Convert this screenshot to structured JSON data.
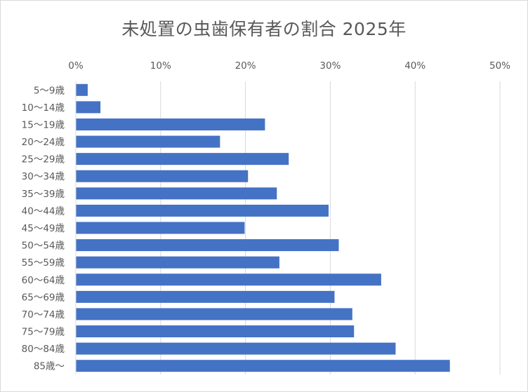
{
  "chart_data": {
    "type": "bar",
    "orientation": "horizontal",
    "title": "未処置の虫歯保有者の割合 2025年",
    "categories": [
      "5〜9歳",
      "10〜14歳",
      "15〜19歳",
      "20〜24歳",
      "25〜29歳",
      "30〜34歳",
      "35〜39歳",
      "40〜44歳",
      "45〜49歳",
      "50〜54歳",
      "55〜59歳",
      "60〜64歳",
      "65〜69歳",
      "70〜74歳",
      "75〜79歳",
      "80〜84歳",
      "85歳〜"
    ],
    "values": [
      1.4,
      2.9,
      22.3,
      17.0,
      25.1,
      20.3,
      23.7,
      29.8,
      19.9,
      31.0,
      24.0,
      36.0,
      30.5,
      32.6,
      32.8,
      37.7,
      44.1
    ],
    "xlim": [
      0,
      50
    ],
    "ticks": [
      "0%",
      "10%",
      "20%",
      "30%",
      "40%",
      "50%"
    ],
    "xlabel": "",
    "ylabel": "",
    "grid": true,
    "legend": "none",
    "colors": {
      "bar": "#4472C4",
      "grid": "#d9d9d9",
      "text": "#595959"
    }
  }
}
